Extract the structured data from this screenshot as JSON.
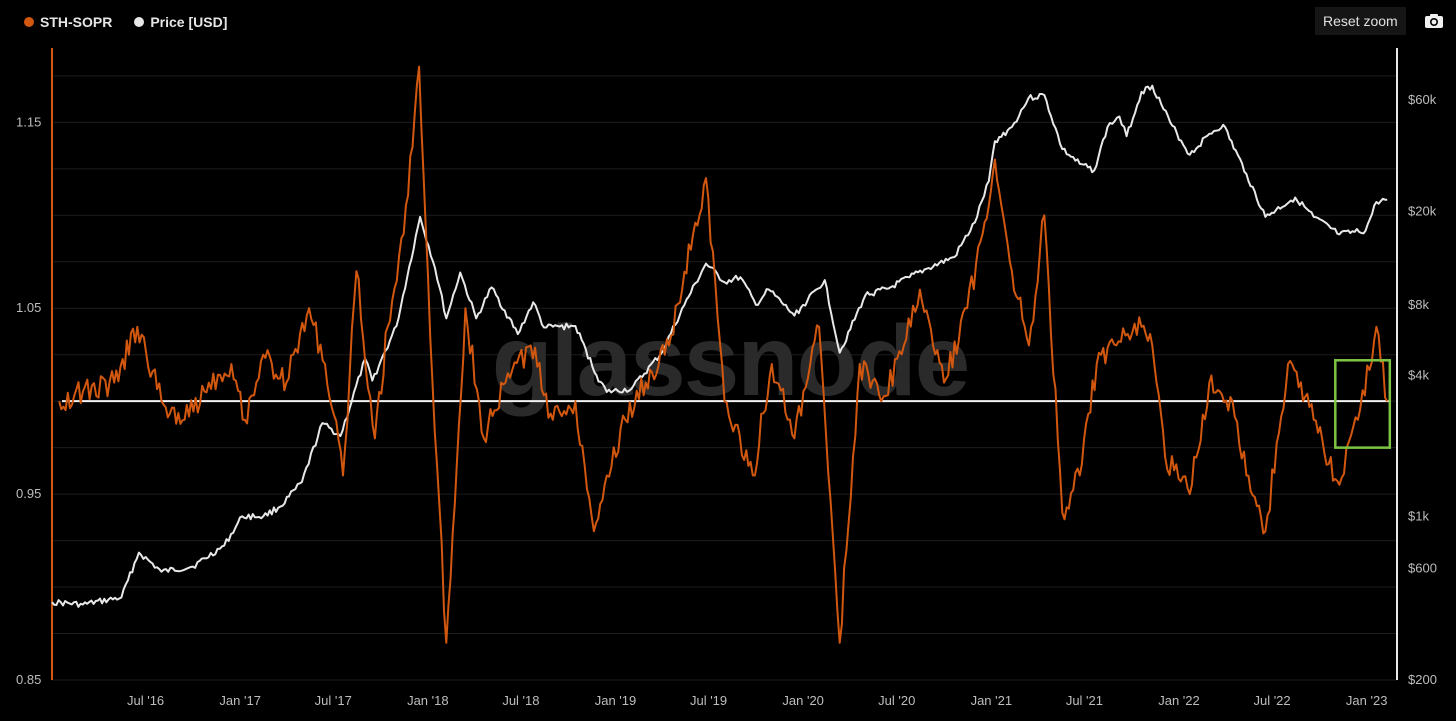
{
  "legend": {
    "series1": {
      "label": "STH-SOPR",
      "color": "#d2570f"
    },
    "series2": {
      "label": "Price [USD]",
      "color": "#e8e8e8"
    }
  },
  "toolbar": {
    "reset_label": "Reset zoom",
    "camera_icon": "camera-icon"
  },
  "watermark": "glassnode",
  "chart_data": {
    "type": "line",
    "x_ticks": [
      "Jul '16",
      "Jan '17",
      "Jul '17",
      "Jan '18",
      "Jul '18",
      "Jan '19",
      "Jul '19",
      "Jan '20",
      "Jul '20",
      "Jan '21",
      "Jul '21",
      "Jan '22",
      "Jul '22",
      "Jan '23"
    ],
    "y_left_ticks": [
      "1.15",
      "1.05",
      "0.95",
      "0.85"
    ],
    "y_left_range": [
      0.85,
      1.19
    ],
    "y_right_ticks": [
      "$60k",
      "$20k",
      "$8k",
      "$4k",
      "$1k",
      "$600",
      "$200"
    ],
    "y_right_scale": "log",
    "y_right_range": [
      200,
      100000
    ],
    "reference_line": 1.0,
    "highlight_box": {
      "color": "#7cc443",
      "x_range": [
        "2022-11-01",
        "2023-02-15"
      ],
      "y_range": [
        0.975,
        1.022
      ]
    },
    "series": [
      {
        "name": "STH-SOPR",
        "color": "#d2570f",
        "x": [
          "2016-01-15",
          "2016-03-01",
          "2016-05-01",
          "2016-06-15",
          "2016-08-01",
          "2016-09-15",
          "2016-11-01",
          "2016-12-15",
          "2017-01-10",
          "2017-02-15",
          "2017-04-01",
          "2017-05-15",
          "2017-06-15",
          "2017-07-20",
          "2017-08-15",
          "2017-09-20",
          "2017-10-15",
          "2017-11-15",
          "2017-12-15",
          "2018-01-10",
          "2018-02-06",
          "2018-03-15",
          "2018-04-20",
          "2018-06-01",
          "2018-07-20",
          "2018-09-01",
          "2018-10-15",
          "2018-11-20",
          "2018-12-15",
          "2019-01-20",
          "2019-03-01",
          "2019-04-15",
          "2019-06-01",
          "2019-06-26",
          "2019-08-01",
          "2019-09-25",
          "2019-11-01",
          "2019-12-15",
          "2020-02-01",
          "2020-03-12",
          "2020-04-20",
          "2020-06-01",
          "2020-07-15",
          "2020-08-15",
          "2020-10-01",
          "2020-11-15",
          "2020-12-15",
          "2021-01-08",
          "2021-02-10",
          "2021-03-15",
          "2021-04-14",
          "2021-05-19",
          "2021-06-22",
          "2021-07-25",
          "2021-09-01",
          "2021-10-20",
          "2021-11-10",
          "2021-12-05",
          "2022-01-22",
          "2022-03-01",
          "2022-04-15",
          "2022-05-12",
          "2022-06-18",
          "2022-08-01",
          "2022-09-20",
          "2022-11-09",
          "2022-12-15",
          "2023-01-20",
          "2023-02-10"
        ],
        "y": [
          1.0,
          1.005,
          1.01,
          1.04,
          1.0,
          0.99,
          1.01,
          1.02,
          0.99,
          1.025,
          1.01,
          1.05,
          1.02,
          0.96,
          1.07,
          0.98,
          1.04,
          1.09,
          1.18,
          1.01,
          0.87,
          1.05,
          0.98,
          1.01,
          1.03,
          0.99,
          1.0,
          0.93,
          0.96,
          0.99,
          1.01,
          1.03,
          1.09,
          1.12,
          1.0,
          0.96,
          1.02,
          0.98,
          1.04,
          0.87,
          1.02,
          1.0,
          1.03,
          1.06,
          1.01,
          1.05,
          1.09,
          1.13,
          1.07,
          1.03,
          1.1,
          0.94,
          0.96,
          1.02,
          1.03,
          1.04,
          1.03,
          0.97,
          0.95,
          1.01,
          1.0,
          0.96,
          0.93,
          1.02,
          0.99,
          0.955,
          0.99,
          1.04,
          1.0
        ]
      },
      {
        "name": "Price [USD]",
        "color": "#e8e8e8",
        "x": [
          "2016-01-01",
          "2016-03-01",
          "2016-05-15",
          "2016-06-18",
          "2016-08-01",
          "2016-10-01",
          "2016-12-01",
          "2017-01-05",
          "2017-02-15",
          "2017-03-20",
          "2017-05-01",
          "2017-06-10",
          "2017-07-15",
          "2017-09-01",
          "2017-09-15",
          "2017-11-01",
          "2017-12-17",
          "2018-01-15",
          "2018-02-06",
          "2018-03-05",
          "2018-04-05",
          "2018-05-05",
          "2018-06-25",
          "2018-07-25",
          "2018-08-15",
          "2018-10-15",
          "2018-11-25",
          "2018-12-15",
          "2019-02-01",
          "2019-04-01",
          "2019-05-15",
          "2019-06-26",
          "2019-08-01",
          "2019-09-01",
          "2019-10-01",
          "2019-10-26",
          "2019-12-15",
          "2020-02-12",
          "2020-03-12",
          "2020-05-01",
          "2020-06-15",
          "2020-07-26",
          "2020-09-01",
          "2020-10-21",
          "2020-11-30",
          "2020-12-27",
          "2021-01-08",
          "2021-02-10",
          "2021-03-14",
          "2021-04-14",
          "2021-05-19",
          "2021-06-22",
          "2021-07-20",
          "2021-08-15",
          "2021-09-07",
          "2021-09-21",
          "2021-10-20",
          "2021-11-10",
          "2021-12-15",
          "2022-01-22",
          "2022-03-01",
          "2022-03-28",
          "2022-05-12",
          "2022-06-18",
          "2022-08-15",
          "2022-09-20",
          "2022-11-09",
          "2022-12-30",
          "2023-01-20",
          "2023-02-10"
        ],
        "y": [
          430,
          420,
          450,
          700,
          580,
          610,
          750,
          1000,
          1000,
          1100,
          1400,
          2500,
          2200,
          4700,
          3800,
          6500,
          19000,
          11500,
          7000,
          11000,
          7000,
          9500,
          6000,
          8200,
          6400,
          6500,
          4000,
          3400,
          3500,
          5000,
          8000,
          12000,
          10000,
          10500,
          8000,
          9300,
          7200,
          10200,
          5000,
          8800,
          9400,
          10500,
          11500,
          12800,
          18000,
          27000,
          40000,
          46000,
          61000,
          63000,
          37000,
          32000,
          30000,
          46000,
          51000,
          42000,
          65000,
          69000,
          48000,
          35000,
          43000,
          47000,
          29000,
          19000,
          23000,
          19000,
          16000,
          16600,
          22000,
          22500
        ]
      }
    ]
  }
}
